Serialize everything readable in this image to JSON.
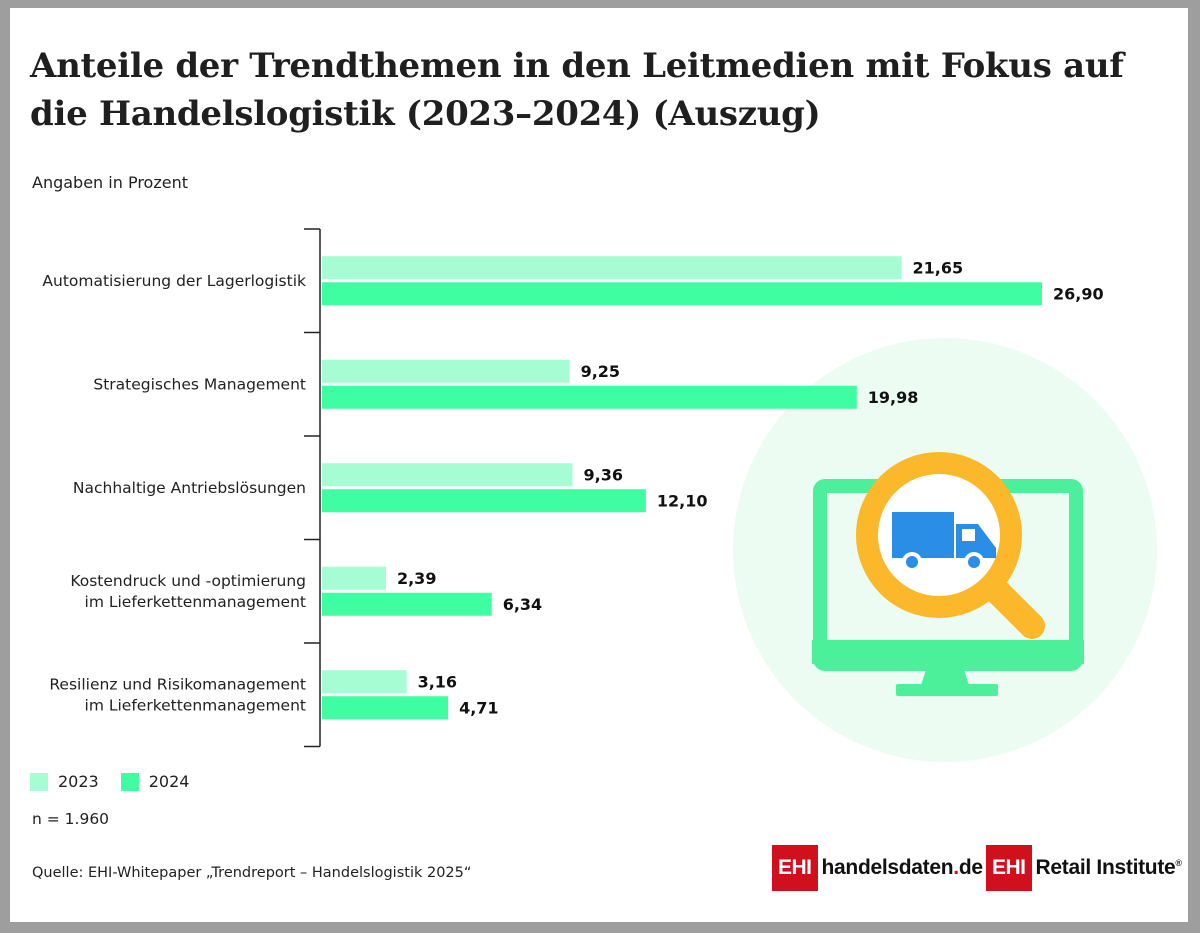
{
  "title": "Anteile der Trendthemen in den Leitmedien mit Fokus auf die Handelslogistik (2023–2024) (Auszug)",
  "unit_label": "Angaben in Prozent",
  "note": "n = 1.960",
  "source": "Quelle: EHI-Whitepaper „Trendreport – Handelslogistik 2025“",
  "colors": {
    "series_2023": "#a6fcd3",
    "series_2024": "#3ffea1",
    "illustration_circle": "#ecfcf2",
    "monitor": "#4cf09a",
    "magnifier": "#fbb82a",
    "truck": "#2a8de6",
    "brand_red": "#d0101d"
  },
  "chart_data": {
    "type": "bar",
    "orientation": "horizontal",
    "categories": [
      [
        "Automatisierung der Lagerlogistik"
      ],
      [
        "Strategisches Management"
      ],
      [
        "Nachhaltige Antriebslösungen"
      ],
      [
        "Kostendruck und -optimierung",
        "im Lieferkettenmanagement"
      ],
      [
        "Resilienz und Risikomanagement",
        "im Lieferkettenmanagement"
      ]
    ],
    "series": [
      {
        "name": "2023",
        "values": [
          21.65,
          9.25,
          9.36,
          2.39,
          3.16
        ],
        "labels": [
          "21,65",
          "9,25",
          "9,36",
          "2,39",
          "3,16"
        ]
      },
      {
        "name": "2024",
        "values": [
          26.9,
          19.98,
          12.1,
          6.34,
          4.71
        ],
        "labels": [
          "26,90",
          "19,98",
          "12,10",
          "6,34",
          "4,71"
        ]
      }
    ],
    "xlim": [
      0,
      26.9
    ],
    "grid": false,
    "legend_position": "bottom-left"
  },
  "logos": {
    "left": {
      "box": "EHI",
      "text_main": "handelsdaten",
      "text_dot": ".",
      "text_end": "de"
    },
    "right": {
      "box": "EHI",
      "text": "Retail Institute",
      "reg": "®"
    }
  },
  "icons": [
    "truck-icon",
    "magnifier-icon",
    "monitor-icon"
  ]
}
